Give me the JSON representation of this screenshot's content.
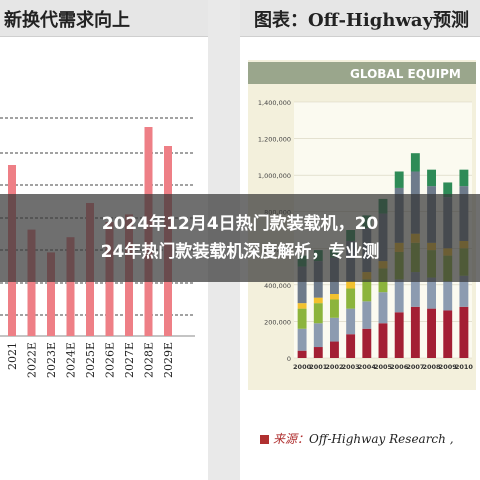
{
  "left_panel": {
    "heading": "新换代需求向上",
    "chart_data": {
      "type": "bar",
      "title": "",
      "xlabel": "",
      "ylabel": "",
      "categories": [
        "2021",
        "2022E",
        "2023E",
        "2024E",
        "2025E",
        "2026E",
        "2027E",
        "2028E",
        "2029E"
      ],
      "values": [
        4.5,
        2.8,
        2.2,
        2.6,
        3.5,
        3.0,
        3.2,
        5.5,
        5.0
      ],
      "ylim": [
        0,
        6
      ],
      "grid": true,
      "bar_color": "#ee7f86"
    }
  },
  "right_panel": {
    "heading": "图表：Off-Highway预测",
    "banner": "GLOBAL EQUIPM",
    "source_label": "来源：",
    "source_text": "Off-Highway Research ,",
    "chart_data": {
      "type": "bar",
      "stacked": true,
      "categories": [
        "2000",
        "2001",
        "2002",
        "2003",
        "2004",
        "2005",
        "2006",
        "2007",
        "2008",
        "2009",
        "2010"
      ],
      "y_ticks": [
        "1,400,000",
        "1,200,000",
        "1,000,000",
        "800,000",
        "600,000",
        "400,000",
        "200,000",
        "0"
      ],
      "ylim": [
        0,
        1400000
      ],
      "series": [
        {
          "color": "#a31f34",
          "values": [
            40000,
            60000,
            90000,
            130000,
            160000,
            190000,
            250000,
            280000,
            270000,
            260000,
            280000
          ]
        },
        {
          "color": "#8c9bb0",
          "values": [
            120000,
            130000,
            130000,
            140000,
            150000,
            170000,
            180000,
            190000,
            170000,
            160000,
            170000
          ]
        },
        {
          "color": "#8cb43c",
          "values": [
            110000,
            110000,
            100000,
            110000,
            120000,
            130000,
            150000,
            160000,
            150000,
            140000,
            150000
          ]
        },
        {
          "color": "#f2c12e",
          "values": [
            30000,
            30000,
            30000,
            40000,
            40000,
            40000,
            50000,
            50000,
            40000,
            40000,
            40000
          ]
        },
        {
          "color": "#6e7b8b",
          "values": [
            200000,
            200000,
            200000,
            220000,
            240000,
            260000,
            300000,
            340000,
            310000,
            280000,
            300000
          ]
        },
        {
          "color": "#2e8b57",
          "values": [
            60000,
            60000,
            50000,
            60000,
            70000,
            80000,
            90000,
            100000,
            90000,
            80000,
            90000
          ]
        }
      ]
    }
  },
  "overlay": {
    "title_line1": "2024年12月4日热门款装载机，20",
    "title_line2": "24年热门款装载机深度解析，专业测"
  },
  "colors": {
    "overlay_bg": "#373737",
    "banner_bg": "#9aa68c",
    "chart_bg": "#f3f0dc"
  }
}
